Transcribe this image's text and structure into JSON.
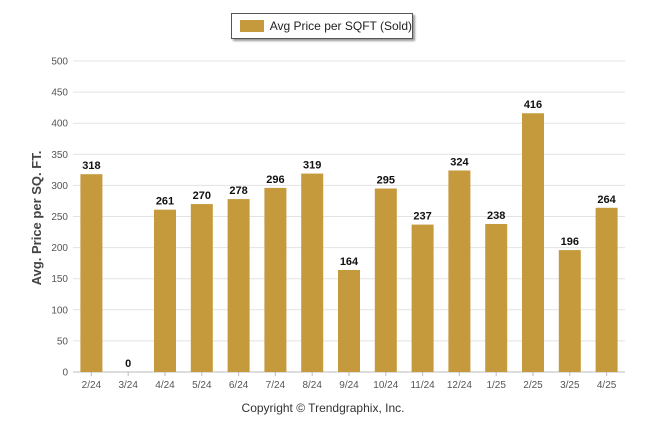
{
  "chart_data": {
    "type": "bar",
    "categories": [
      "2/24",
      "3/24",
      "4/24",
      "5/24",
      "6/24",
      "7/24",
      "8/24",
      "9/24",
      "10/24",
      "11/24",
      "12/24",
      "1/25",
      "2/25",
      "3/25",
      "4/25"
    ],
    "series": [
      {
        "name": "Avg Price per SQFT (Sold)",
        "values": [
          318,
          0,
          261,
          270,
          278,
          296,
          319,
          164,
          295,
          237,
          324,
          238,
          416,
          196,
          264
        ]
      }
    ],
    "ylabel": "Avg. Price per SQ. FT.",
    "xlabel": "",
    "ylim": [
      0,
      500
    ],
    "yticks": [
      0,
      50,
      100,
      150,
      200,
      250,
      300,
      350,
      400,
      450,
      500
    ],
    "grid": true,
    "legend_position": "top-center",
    "bar_color": "#C49A3C",
    "data_labels": true
  },
  "footer": "Copyright © Trendgraphix, Inc."
}
